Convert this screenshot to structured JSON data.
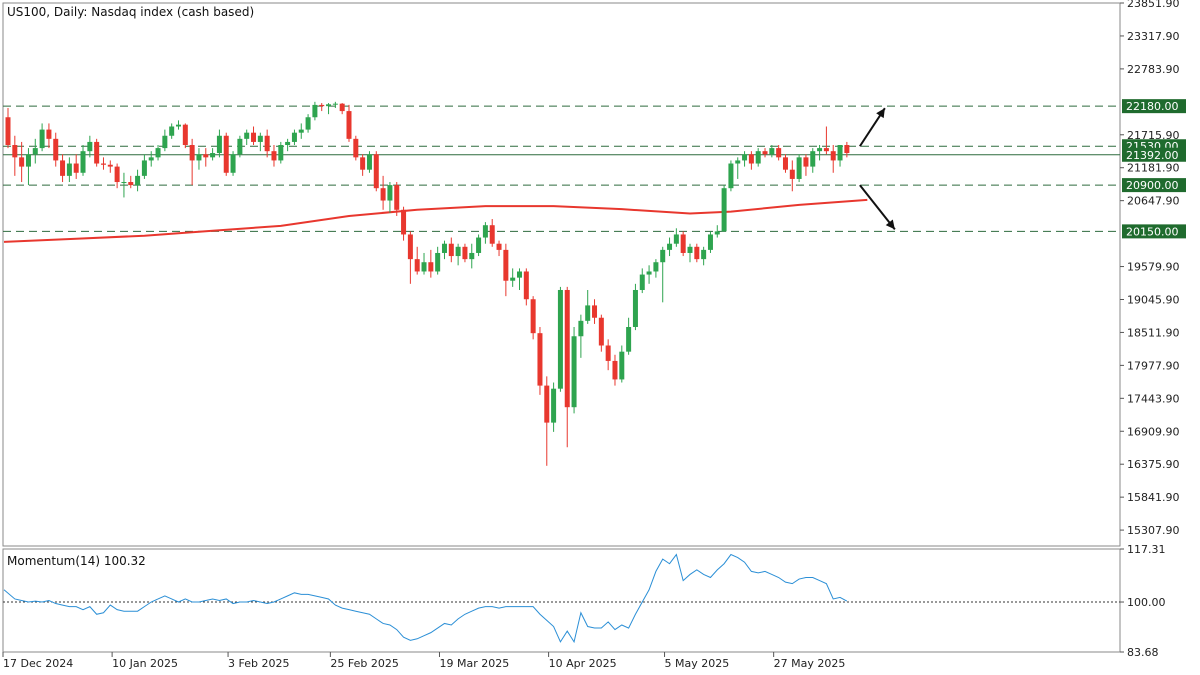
{
  "chart_data": [
    {
      "type": "candlestick",
      "title": "US100, Daily:  Nasdaq index (cash based)",
      "y_axis": {
        "ticks": [
          "23851.90",
          "23317.90",
          "22783.90",
          "21715.90",
          "21181.90",
          "20647.90",
          "19579.90",
          "19045.90",
          "18511.90",
          "17977.90",
          "17443.90",
          "16909.90",
          "16375.90",
          "15841.90",
          "15307.90"
        ],
        "range": [
          15050,
          23852
        ]
      },
      "x_axis": {
        "tick_labels": [
          "17 Dec 2024",
          "10 Jan 2025",
          "3 Feb 2025",
          "25 Feb 2025",
          "19 Mar 2025",
          "10 Apr 2025",
          "5 May 2025",
          "27 May 2025"
        ],
        "tick_index": [
          0,
          16,
          33,
          48,
          64,
          80,
          97,
          113
        ]
      },
      "levels": [
        {
          "value": 22180.0,
          "label": "22180.00",
          "style": "dashed"
        },
        {
          "value": 21530.0,
          "label": "21530.00",
          "style": "dashed"
        },
        {
          "value": 21392.0,
          "label": "21392.00",
          "style": "solid"
        },
        {
          "value": 20900.0,
          "label": "20900.00",
          "style": "dashed"
        },
        {
          "value": 20150.0,
          "label": "20150.00",
          "style": "dashed"
        }
      ],
      "candles": [
        {
          "o": 22000,
          "h": 22150,
          "l": 21500,
          "c": 21550
        },
        {
          "o": 21550,
          "h": 21700,
          "l": 21050,
          "c": 21350
        },
        {
          "o": 21350,
          "h": 21600,
          "l": 20950,
          "c": 21200
        },
        {
          "o": 21200,
          "h": 21500,
          "l": 20900,
          "c": 21400
        },
        {
          "o": 21400,
          "h": 21650,
          "l": 21250,
          "c": 21500
        },
        {
          "o": 21500,
          "h": 21900,
          "l": 21450,
          "c": 21800
        },
        {
          "o": 21800,
          "h": 21900,
          "l": 21500,
          "c": 21650
        },
        {
          "o": 21650,
          "h": 21750,
          "l": 21200,
          "c": 21300
        },
        {
          "o": 21300,
          "h": 21400,
          "l": 20950,
          "c": 21050
        },
        {
          "o": 21050,
          "h": 21350,
          "l": 20950,
          "c": 21250
        },
        {
          "o": 21250,
          "h": 21400,
          "l": 21000,
          "c": 21100
        },
        {
          "o": 21100,
          "h": 21550,
          "l": 21050,
          "c": 21450
        },
        {
          "o": 21450,
          "h": 21700,
          "l": 21350,
          "c": 21600
        },
        {
          "o": 21600,
          "h": 21650,
          "l": 21200,
          "c": 21250
        },
        {
          "o": 21250,
          "h": 21350,
          "l": 21150,
          "c": 21230
        },
        {
          "o": 21230,
          "h": 21300,
          "l": 21100,
          "c": 21200
        },
        {
          "o": 21200,
          "h": 21250,
          "l": 20850,
          "c": 20950
        },
        {
          "o": 20950,
          "h": 21100,
          "l": 20700,
          "c": 20950
        },
        {
          "o": 20950,
          "h": 21050,
          "l": 20850,
          "c": 20900
        },
        {
          "o": 20900,
          "h": 21150,
          "l": 20800,
          "c": 21050
        },
        {
          "o": 21050,
          "h": 21400,
          "l": 21000,
          "c": 21300
        },
        {
          "o": 21300,
          "h": 21450,
          "l": 21200,
          "c": 21350
        },
        {
          "o": 21350,
          "h": 21550,
          "l": 21300,
          "c": 21500
        },
        {
          "o": 21500,
          "h": 21800,
          "l": 21450,
          "c": 21700
        },
        {
          "o": 21700,
          "h": 21900,
          "l": 21650,
          "c": 21850
        },
        {
          "o": 21850,
          "h": 21950,
          "l": 21800,
          "c": 21880
        },
        {
          "o": 21880,
          "h": 21900,
          "l": 21500,
          "c": 21550
        },
        {
          "o": 21550,
          "h": 21650,
          "l": 20900,
          "c": 21300
        },
        {
          "o": 21300,
          "h": 21500,
          "l": 21150,
          "c": 21400
        },
        {
          "o": 21400,
          "h": 21500,
          "l": 21200,
          "c": 21350
        },
        {
          "o": 21350,
          "h": 21500,
          "l": 21300,
          "c": 21420
        },
        {
          "o": 21420,
          "h": 21800,
          "l": 21350,
          "c": 21700
        },
        {
          "o": 21700,
          "h": 21750,
          "l": 21050,
          "c": 21100
        },
        {
          "o": 21100,
          "h": 21450,
          "l": 21050,
          "c": 21400
        },
        {
          "o": 21400,
          "h": 21700,
          "l": 21350,
          "c": 21650
        },
        {
          "o": 21650,
          "h": 21800,
          "l": 21550,
          "c": 21750
        },
        {
          "o": 21750,
          "h": 21850,
          "l": 21550,
          "c": 21600
        },
        {
          "o": 21600,
          "h": 21750,
          "l": 21450,
          "c": 21700
        },
        {
          "o": 21700,
          "h": 21800,
          "l": 21350,
          "c": 21450
        },
        {
          "o": 21450,
          "h": 21550,
          "l": 21200,
          "c": 21300
        },
        {
          "o": 21300,
          "h": 21600,
          "l": 21250,
          "c": 21550
        },
        {
          "o": 21550,
          "h": 21650,
          "l": 21450,
          "c": 21600
        },
        {
          "o": 21600,
          "h": 21800,
          "l": 21550,
          "c": 21750
        },
        {
          "o": 21750,
          "h": 21900,
          "l": 21650,
          "c": 21800
        },
        {
          "o": 21800,
          "h": 22050,
          "l": 21750,
          "c": 22000
        },
        {
          "o": 22000,
          "h": 22250,
          "l": 21950,
          "c": 22200
        },
        {
          "o": 22200,
          "h": 22230,
          "l": 22100,
          "c": 22180
        },
        {
          "o": 22180,
          "h": 22230,
          "l": 22050,
          "c": 22210
        },
        {
          "o": 22210,
          "h": 22250,
          "l": 22150,
          "c": 22220
        },
        {
          "o": 22220,
          "h": 22230,
          "l": 22050,
          "c": 22100
        },
        {
          "o": 22100,
          "h": 22200,
          "l": 21600,
          "c": 21650
        },
        {
          "o": 21650,
          "h": 21700,
          "l": 21300,
          "c": 21350
        },
        {
          "o": 21350,
          "h": 21400,
          "l": 21050,
          "c": 21150
        },
        {
          "o": 21150,
          "h": 21450,
          "l": 21100,
          "c": 21400
        },
        {
          "o": 21400,
          "h": 21450,
          "l": 20800,
          "c": 20850
        },
        {
          "o": 20850,
          "h": 21050,
          "l": 20500,
          "c": 20650
        },
        {
          "o": 20650,
          "h": 20950,
          "l": 20450,
          "c": 20900
        },
        {
          "o": 20900,
          "h": 20950,
          "l": 20400,
          "c": 20500
        },
        {
          "o": 20500,
          "h": 20550,
          "l": 20000,
          "c": 20100
        },
        {
          "o": 20100,
          "h": 20150,
          "l": 19300,
          "c": 19700
        },
        {
          "o": 19700,
          "h": 19900,
          "l": 19450,
          "c": 19500
        },
        {
          "o": 19500,
          "h": 19800,
          "l": 19450,
          "c": 19650
        },
        {
          "o": 19650,
          "h": 19850,
          "l": 19400,
          "c": 19500
        },
        {
          "o": 19500,
          "h": 19900,
          "l": 19450,
          "c": 19800
        },
        {
          "o": 19800,
          "h": 20000,
          "l": 19700,
          "c": 19950
        },
        {
          "o": 19950,
          "h": 20050,
          "l": 19650,
          "c": 19750
        },
        {
          "o": 19750,
          "h": 19950,
          "l": 19600,
          "c": 19900
        },
        {
          "o": 19900,
          "h": 19950,
          "l": 19650,
          "c": 19700
        },
        {
          "o": 19700,
          "h": 19950,
          "l": 19550,
          "c": 19800
        },
        {
          "o": 19800,
          "h": 20100,
          "l": 19750,
          "c": 20050
        },
        {
          "o": 20050,
          "h": 20300,
          "l": 19950,
          "c": 20250
        },
        {
          "o": 20250,
          "h": 20350,
          "l": 19900,
          "c": 19950
        },
        {
          "o": 19950,
          "h": 20000,
          "l": 19750,
          "c": 19850
        },
        {
          "o": 19850,
          "h": 19950,
          "l": 19100,
          "c": 19350
        },
        {
          "o": 19350,
          "h": 19550,
          "l": 19250,
          "c": 19400
        },
        {
          "o": 19400,
          "h": 19550,
          "l": 19200,
          "c": 19500
        },
        {
          "o": 19500,
          "h": 19550,
          "l": 18950,
          "c": 19050
        },
        {
          "o": 19050,
          "h": 19100,
          "l": 18400,
          "c": 18500
        },
        {
          "o": 18500,
          "h": 18600,
          "l": 17500,
          "c": 17650
        },
        {
          "o": 17650,
          "h": 17800,
          "l": 16350,
          "c": 17050
        },
        {
          "o": 17050,
          "h": 17700,
          "l": 16900,
          "c": 17600
        },
        {
          "o": 17600,
          "h": 19250,
          "l": 17550,
          "c": 19200
        },
        {
          "o": 19200,
          "h": 19250,
          "l": 16650,
          "c": 17300
        },
        {
          "o": 17300,
          "h": 18600,
          "l": 17200,
          "c": 18450
        },
        {
          "o": 18450,
          "h": 18800,
          "l": 18100,
          "c": 18700
        },
        {
          "o": 18700,
          "h": 19200,
          "l": 18650,
          "c": 18950
        },
        {
          "o": 18950,
          "h": 19050,
          "l": 18650,
          "c": 18750
        },
        {
          "o": 18750,
          "h": 18800,
          "l": 18200,
          "c": 18300
        },
        {
          "o": 18300,
          "h": 18400,
          "l": 17900,
          "c": 18050
        },
        {
          "o": 18050,
          "h": 18150,
          "l": 17650,
          "c": 17750
        },
        {
          "o": 17750,
          "h": 18300,
          "l": 17700,
          "c": 18200
        },
        {
          "o": 18200,
          "h": 18750,
          "l": 18150,
          "c": 18600
        },
        {
          "o": 18600,
          "h": 19300,
          "l": 18550,
          "c": 19200
        },
        {
          "o": 19200,
          "h": 19550,
          "l": 19150,
          "c": 19450
        },
        {
          "o": 19450,
          "h": 19600,
          "l": 19300,
          "c": 19500
        },
        {
          "o": 19500,
          "h": 19700,
          "l": 19400,
          "c": 19650
        },
        {
          "o": 19650,
          "h": 19900,
          "l": 19000,
          "c": 19850
        },
        {
          "o": 19850,
          "h": 20050,
          "l": 19750,
          "c": 19950
        },
        {
          "o": 19950,
          "h": 20200,
          "l": 19900,
          "c": 20100
        },
        {
          "o": 20100,
          "h": 20150,
          "l": 19750,
          "c": 19800
        },
        {
          "o": 19800,
          "h": 19950,
          "l": 19650,
          "c": 19900
        },
        {
          "o": 19900,
          "h": 19950,
          "l": 19650,
          "c": 19700
        },
        {
          "o": 19700,
          "h": 19900,
          "l": 19600,
          "c": 19850
        },
        {
          "o": 19850,
          "h": 20150,
          "l": 19800,
          "c": 20100
        },
        {
          "o": 20100,
          "h": 20250,
          "l": 20050,
          "c": 20150
        },
        {
          "o": 20150,
          "h": 20900,
          "l": 20150,
          "c": 20850
        },
        {
          "o": 20850,
          "h": 21300,
          "l": 20800,
          "c": 21250
        },
        {
          "o": 21250,
          "h": 21350,
          "l": 21000,
          "c": 21300
        },
        {
          "o": 21300,
          "h": 21450,
          "l": 21200,
          "c": 21400
        },
        {
          "o": 21400,
          "h": 21450,
          "l": 21150,
          "c": 21250
        },
        {
          "o": 21250,
          "h": 21500,
          "l": 21200,
          "c": 21450
        },
        {
          "o": 21450,
          "h": 21500,
          "l": 21350,
          "c": 21400
        },
        {
          "o": 21400,
          "h": 21550,
          "l": 21350,
          "c": 21500
        },
        {
          "o": 21500,
          "h": 21550,
          "l": 21300,
          "c": 21350
        },
        {
          "o": 21350,
          "h": 21400,
          "l": 21100,
          "c": 21150
        },
        {
          "o": 21150,
          "h": 21300,
          "l": 20800,
          "c": 21000
        },
        {
          "o": 21000,
          "h": 21400,
          "l": 20950,
          "c": 21350
        },
        {
          "o": 21350,
          "h": 21400,
          "l": 21050,
          "c": 21200
        },
        {
          "o": 21200,
          "h": 21500,
          "l": 21100,
          "c": 21450
        },
        {
          "o": 21450,
          "h": 21550,
          "l": 21300,
          "c": 21500
        },
        {
          "o": 21500,
          "h": 21850,
          "l": 21400,
          "c": 21450
        },
        {
          "o": 21450,
          "h": 21550,
          "l": 21100,
          "c": 21300
        },
        {
          "o": 21300,
          "h": 21550,
          "l": 21200,
          "c": 21550
        },
        {
          "o": 21550,
          "h": 21600,
          "l": 21350,
          "c": 21420
        }
      ],
      "sma": [
        [
          0,
          19980
        ],
        [
          10,
          20030
        ],
        [
          20,
          20080
        ],
        [
          30,
          20160
        ],
        [
          40,
          20240
        ],
        [
          50,
          20400
        ],
        [
          60,
          20500
        ],
        [
          70,
          20560
        ],
        [
          80,
          20560
        ],
        [
          90,
          20510
        ],
        [
          100,
          20440
        ],
        [
          106,
          20470
        ],
        [
          116,
          20580
        ],
        [
          126,
          20660
        ]
      ],
      "annotations": [
        {
          "type": "arrow",
          "direction": "up-right"
        },
        {
          "type": "arrow",
          "direction": "down-right"
        }
      ]
    },
    {
      "type": "line",
      "title": "Momentum(14) 100.32",
      "y_axis": {
        "ticks": [
          "117.31",
          "100.00",
          "83.68"
        ],
        "range": [
          83.68,
          117.31
        ]
      },
      "reference_line": 100.0,
      "values": [
        104,
        101,
        100.5,
        100,
        100.3,
        100,
        100.5,
        99.5,
        99,
        98.5,
        98.5,
        97.5,
        98.5,
        96,
        96.5,
        99,
        97.5,
        97,
        97,
        97,
        98.5,
        100,
        101,
        102,
        101,
        100,
        101,
        100,
        100,
        100.5,
        101,
        100.5,
        101,
        99.5,
        100,
        100,
        100.5,
        100,
        99.5,
        100,
        101,
        102,
        103,
        102.5,
        102.5,
        102,
        101.5,
        101,
        99,
        98,
        97.5,
        97,
        96.5,
        96,
        94.5,
        93,
        92.5,
        91,
        88.5,
        87.5,
        88,
        89,
        90,
        91.5,
        93,
        92.5,
        94.5,
        96,
        97,
        98,
        98.5,
        98.5,
        98,
        98.5,
        98.5,
        98.5,
        98.5,
        98.5,
        96,
        94,
        92,
        87,
        90.5,
        87,
        96.5,
        92,
        91.5,
        91.5,
        93.5,
        91,
        92.5,
        91.5,
        96,
        100,
        104,
        110,
        114,
        112.5,
        115.5,
        107,
        109,
        110.5,
        109,
        108,
        110.5,
        112.5,
        115.5,
        114.5,
        113,
        110,
        109.5,
        110,
        109,
        108,
        106.5,
        106,
        107.5,
        108,
        108,
        107,
        106,
        101,
        101.5,
        100.32
      ]
    }
  ]
}
